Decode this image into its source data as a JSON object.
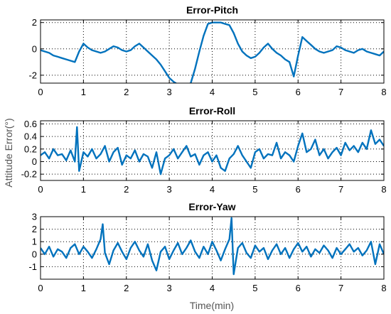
{
  "figure": {
    "ylabel": "Attitude Error(°)",
    "xlabel": "Time(min)"
  },
  "colors": {
    "series": "#0072bd",
    "grid": "#000000",
    "text": "#000000",
    "ylabel_text": "#555555"
  },
  "chart_data": [
    {
      "type": "line",
      "title": "Error-Pitch",
      "xlabel": "",
      "ylabel": "",
      "xlim": [
        0,
        8
      ],
      "ylim": [
        -2.6,
        2.2
      ],
      "xticks": [
        0,
        1,
        2,
        3,
        4,
        5,
        6,
        7,
        8
      ],
      "yticks": [
        2,
        0,
        -2
      ],
      "grid": true,
      "series": [
        {
          "x": [
            0,
            0.1,
            0.2,
            0.3,
            0.4,
            0.5,
            0.6,
            0.7,
            0.8,
            0.9,
            1.0,
            1.1,
            1.2,
            1.3,
            1.4,
            1.5,
            1.6,
            1.7,
            1.8,
            1.9,
            2.0,
            2.1,
            2.2,
            2.3,
            2.4,
            2.5,
            2.6,
            2.7,
            2.8,
            2.9,
            3.0,
            3.1,
            3.2,
            3.3,
            3.4,
            3.5,
            3.6,
            3.7,
            3.8,
            3.9,
            4.0,
            4.1,
            4.2,
            4.3,
            4.4,
            4.5,
            4.6,
            4.7,
            4.8,
            4.9,
            5.0,
            5.1,
            5.2,
            5.3,
            5.4,
            5.5,
            5.6,
            5.7,
            5.8,
            5.9,
            6.0,
            6.1,
            6.2,
            6.3,
            6.4,
            6.5,
            6.6,
            6.7,
            6.8,
            6.9,
            7.0,
            7.1,
            7.2,
            7.3,
            7.4,
            7.5,
            7.6,
            7.7,
            7.8,
            7.9,
            8.0
          ],
          "y": [
            -0.1,
            -0.2,
            -0.3,
            -0.5,
            -0.6,
            -0.7,
            -0.8,
            -0.9,
            -1.0,
            -0.2,
            0.4,
            0.1,
            -0.1,
            -0.2,
            -0.3,
            -0.2,
            0.0,
            0.2,
            0.1,
            -0.1,
            -0.2,
            -0.1,
            0.2,
            0.4,
            0.1,
            -0.2,
            -0.5,
            -0.8,
            -1.2,
            -1.7,
            -2.2,
            -2.5,
            -2.7,
            -2.8,
            -2.8,
            -2.6,
            -1.5,
            -0.2,
            1.0,
            1.9,
            2.0,
            2.0,
            2.0,
            1.9,
            1.8,
            1.2,
            0.4,
            -0.2,
            -0.5,
            -0.7,
            -0.6,
            -0.3,
            0.1,
            0.4,
            0.0,
            -0.3,
            -0.5,
            -0.8,
            -1.0,
            -2.1,
            -0.5,
            0.9,
            0.6,
            0.3,
            0.0,
            -0.2,
            -0.3,
            -0.2,
            -0.1,
            0.2,
            0.1,
            -0.1,
            -0.2,
            -0.3,
            -0.1,
            0.0,
            -0.2,
            -0.3,
            -0.4,
            -0.5,
            -0.2
          ]
        }
      ]
    },
    {
      "type": "line",
      "title": "Error-Roll",
      "xlabel": "",
      "ylabel": "",
      "xlim": [
        0,
        8
      ],
      "ylim": [
        -0.3,
        0.65
      ],
      "xticks": [
        0,
        1,
        2,
        3,
        4,
        5,
        6,
        7,
        8
      ],
      "yticks": [
        0.6,
        0.4,
        0.2,
        0,
        -0.2
      ],
      "grid": true,
      "series": [
        {
          "x": [
            0,
            0.1,
            0.2,
            0.3,
            0.4,
            0.5,
            0.6,
            0.7,
            0.8,
            0.85,
            0.9,
            1.0,
            1.1,
            1.2,
            1.3,
            1.4,
            1.5,
            1.6,
            1.7,
            1.8,
            1.9,
            2.0,
            2.1,
            2.2,
            2.3,
            2.4,
            2.5,
            2.6,
            2.7,
            2.8,
            2.9,
            3.0,
            3.1,
            3.2,
            3.3,
            3.4,
            3.5,
            3.6,
            3.7,
            3.8,
            3.9,
            4.0,
            4.1,
            4.2,
            4.3,
            4.4,
            4.5,
            4.6,
            4.7,
            4.8,
            4.9,
            5.0,
            5.1,
            5.2,
            5.3,
            5.4,
            5.5,
            5.6,
            5.7,
            5.8,
            5.9,
            6.0,
            6.1,
            6.2,
            6.3,
            6.4,
            6.5,
            6.6,
            6.7,
            6.8,
            6.9,
            7.0,
            7.1,
            7.2,
            7.3,
            7.4,
            7.5,
            7.6,
            7.7,
            7.8,
            7.9,
            8.0
          ],
          "y": [
            0.1,
            0.15,
            0.05,
            0.2,
            0.1,
            0.12,
            0.02,
            0.18,
            0.0,
            0.55,
            -0.15,
            0.15,
            0.08,
            0.2,
            0.05,
            0.12,
            0.25,
            0.0,
            0.15,
            0.22,
            -0.05,
            0.1,
            0.05,
            0.18,
            0.0,
            0.12,
            0.08,
            -0.1,
            0.15,
            -0.2,
            0.05,
            0.1,
            0.2,
            0.05,
            0.15,
            0.25,
            0.08,
            0.12,
            -0.05,
            0.1,
            0.15,
            0.0,
            0.1,
            -0.1,
            -0.15,
            0.05,
            0.12,
            0.25,
            0.1,
            0.0,
            -0.1,
            0.15,
            0.2,
            0.05,
            0.12,
            0.1,
            0.3,
            0.05,
            0.15,
            0.1,
            0.0,
            0.25,
            0.45,
            0.15,
            0.2,
            0.35,
            0.1,
            0.2,
            0.05,
            0.15,
            0.22,
            0.1,
            0.3,
            0.18,
            0.25,
            0.15,
            0.3,
            0.2,
            0.5,
            0.28,
            0.35,
            0.25
          ]
        }
      ]
    },
    {
      "type": "line",
      "title": "Error-Yaw",
      "xlabel": "Time(min)",
      "ylabel": "",
      "xlim": [
        0,
        8
      ],
      "ylim": [
        -2,
        3
      ],
      "xticks": [
        0,
        1,
        2,
        3,
        4,
        5,
        6,
        7,
        8
      ],
      "yticks": [
        3,
        2,
        1,
        0,
        -1
      ],
      "grid": true,
      "series": [
        {
          "x": [
            0,
            0.1,
            0.2,
            0.3,
            0.4,
            0.5,
            0.6,
            0.7,
            0.8,
            0.9,
            1.0,
            1.1,
            1.2,
            1.3,
            1.4,
            1.45,
            1.5,
            1.6,
            1.7,
            1.8,
            1.9,
            2.0,
            2.1,
            2.2,
            2.3,
            2.4,
            2.5,
            2.6,
            2.7,
            2.8,
            2.9,
            3.0,
            3.1,
            3.2,
            3.3,
            3.4,
            3.5,
            3.6,
            3.7,
            3.8,
            3.9,
            4.0,
            4.1,
            4.2,
            4.3,
            4.4,
            4.45,
            4.5,
            4.6,
            4.7,
            4.8,
            4.9,
            5.0,
            5.1,
            5.2,
            5.3,
            5.4,
            5.5,
            5.6,
            5.7,
            5.8,
            5.9,
            6.0,
            6.1,
            6.2,
            6.3,
            6.4,
            6.5,
            6.6,
            6.7,
            6.8,
            6.9,
            7.0,
            7.1,
            7.2,
            7.3,
            7.4,
            7.5,
            7.6,
            7.7,
            7.8,
            7.9,
            8.0
          ],
          "y": [
            0.5,
            0.0,
            0.6,
            -0.2,
            0.4,
            0.2,
            -0.3,
            0.5,
            0.8,
            0.0,
            0.6,
            0.2,
            -0.3,
            0.4,
            1.2,
            2.4,
            0.1,
            -0.8,
            0.3,
            0.9,
            0.2,
            -0.4,
            0.5,
            1.0,
            0.3,
            -0.2,
            0.8,
            -0.5,
            -1.3,
            0.2,
            0.6,
            -0.4,
            0.3,
            0.9,
            0.0,
            0.5,
            1.1,
            0.2,
            -0.3,
            0.6,
            0.0,
            1.0,
            0.3,
            -0.5,
            0.4,
            1.2,
            2.9,
            -1.6,
            0.5,
            0.9,
            0.1,
            -0.3,
            0.7,
            0.2,
            0.5,
            -0.4,
            0.3,
            0.8,
            0.0,
            0.5,
            -0.3,
            0.4,
            0.9,
            0.2,
            0.6,
            -0.2,
            0.4,
            0.1,
            0.7,
            0.3,
            -0.3,
            0.5,
            0.0,
            0.4,
            0.8,
            0.2,
            0.5,
            -0.1,
            0.3,
            1.0,
            -0.8,
            0.8,
            0.0
          ]
        }
      ]
    }
  ]
}
